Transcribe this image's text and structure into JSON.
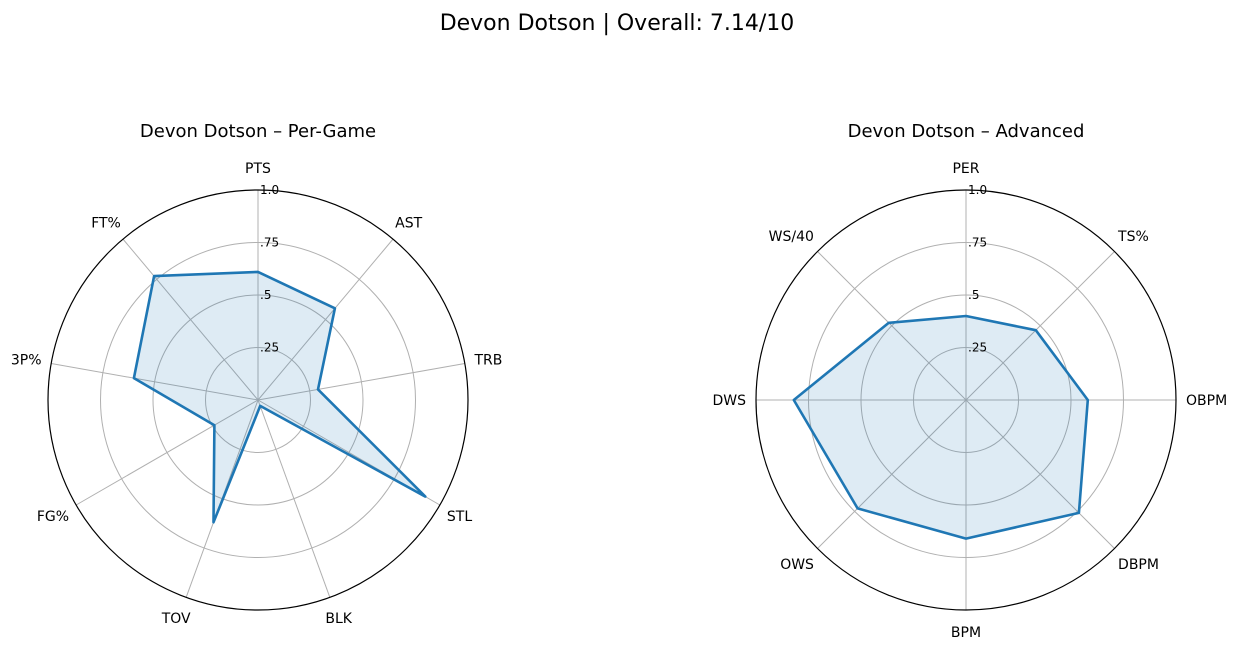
{
  "figure": {
    "suptitle": "Devon Dotson | Overall: 7.14/10"
  },
  "colors": {
    "line": "#1f77b4",
    "fill": "#1f77b4",
    "grid": "#b0b0b0",
    "frame": "#000000"
  },
  "chart_data": [
    {
      "type": "radar",
      "title": "Devon Dotson – Per-Game",
      "categories": [
        "PTS",
        "AST",
        "TRB",
        "STL",
        "BLK",
        "TOV",
        "FG%",
        "3P%",
        "FT%"
      ],
      "values": [
        0.61,
        0.57,
        0.29,
        0.92,
        0.03,
        0.62,
        0.24,
        0.6,
        0.77
      ],
      "rlim": [
        0,
        1.0
      ],
      "rticks": [
        0.25,
        0.5,
        0.75,
        1.0
      ],
      "rtick_labels": [
        ".25",
        ".5",
        ".75",
        "1.0"
      ],
      "grid": true
    },
    {
      "type": "radar",
      "title": "Devon Dotson – Advanced",
      "categories": [
        "PER",
        "TS%",
        "OBPM",
        "DBPM",
        "BPM",
        "OWS",
        "DWS",
        "WS/40"
      ],
      "values": [
        0.4,
        0.47,
        0.58,
        0.76,
        0.66,
        0.73,
        0.82,
        0.52
      ],
      "rlim": [
        0,
        1.0
      ],
      "rticks": [
        0.25,
        0.5,
        0.75,
        1.0
      ],
      "rtick_labels": [
        ".25",
        ".5",
        ".75",
        "1.0"
      ],
      "grid": true
    }
  ]
}
